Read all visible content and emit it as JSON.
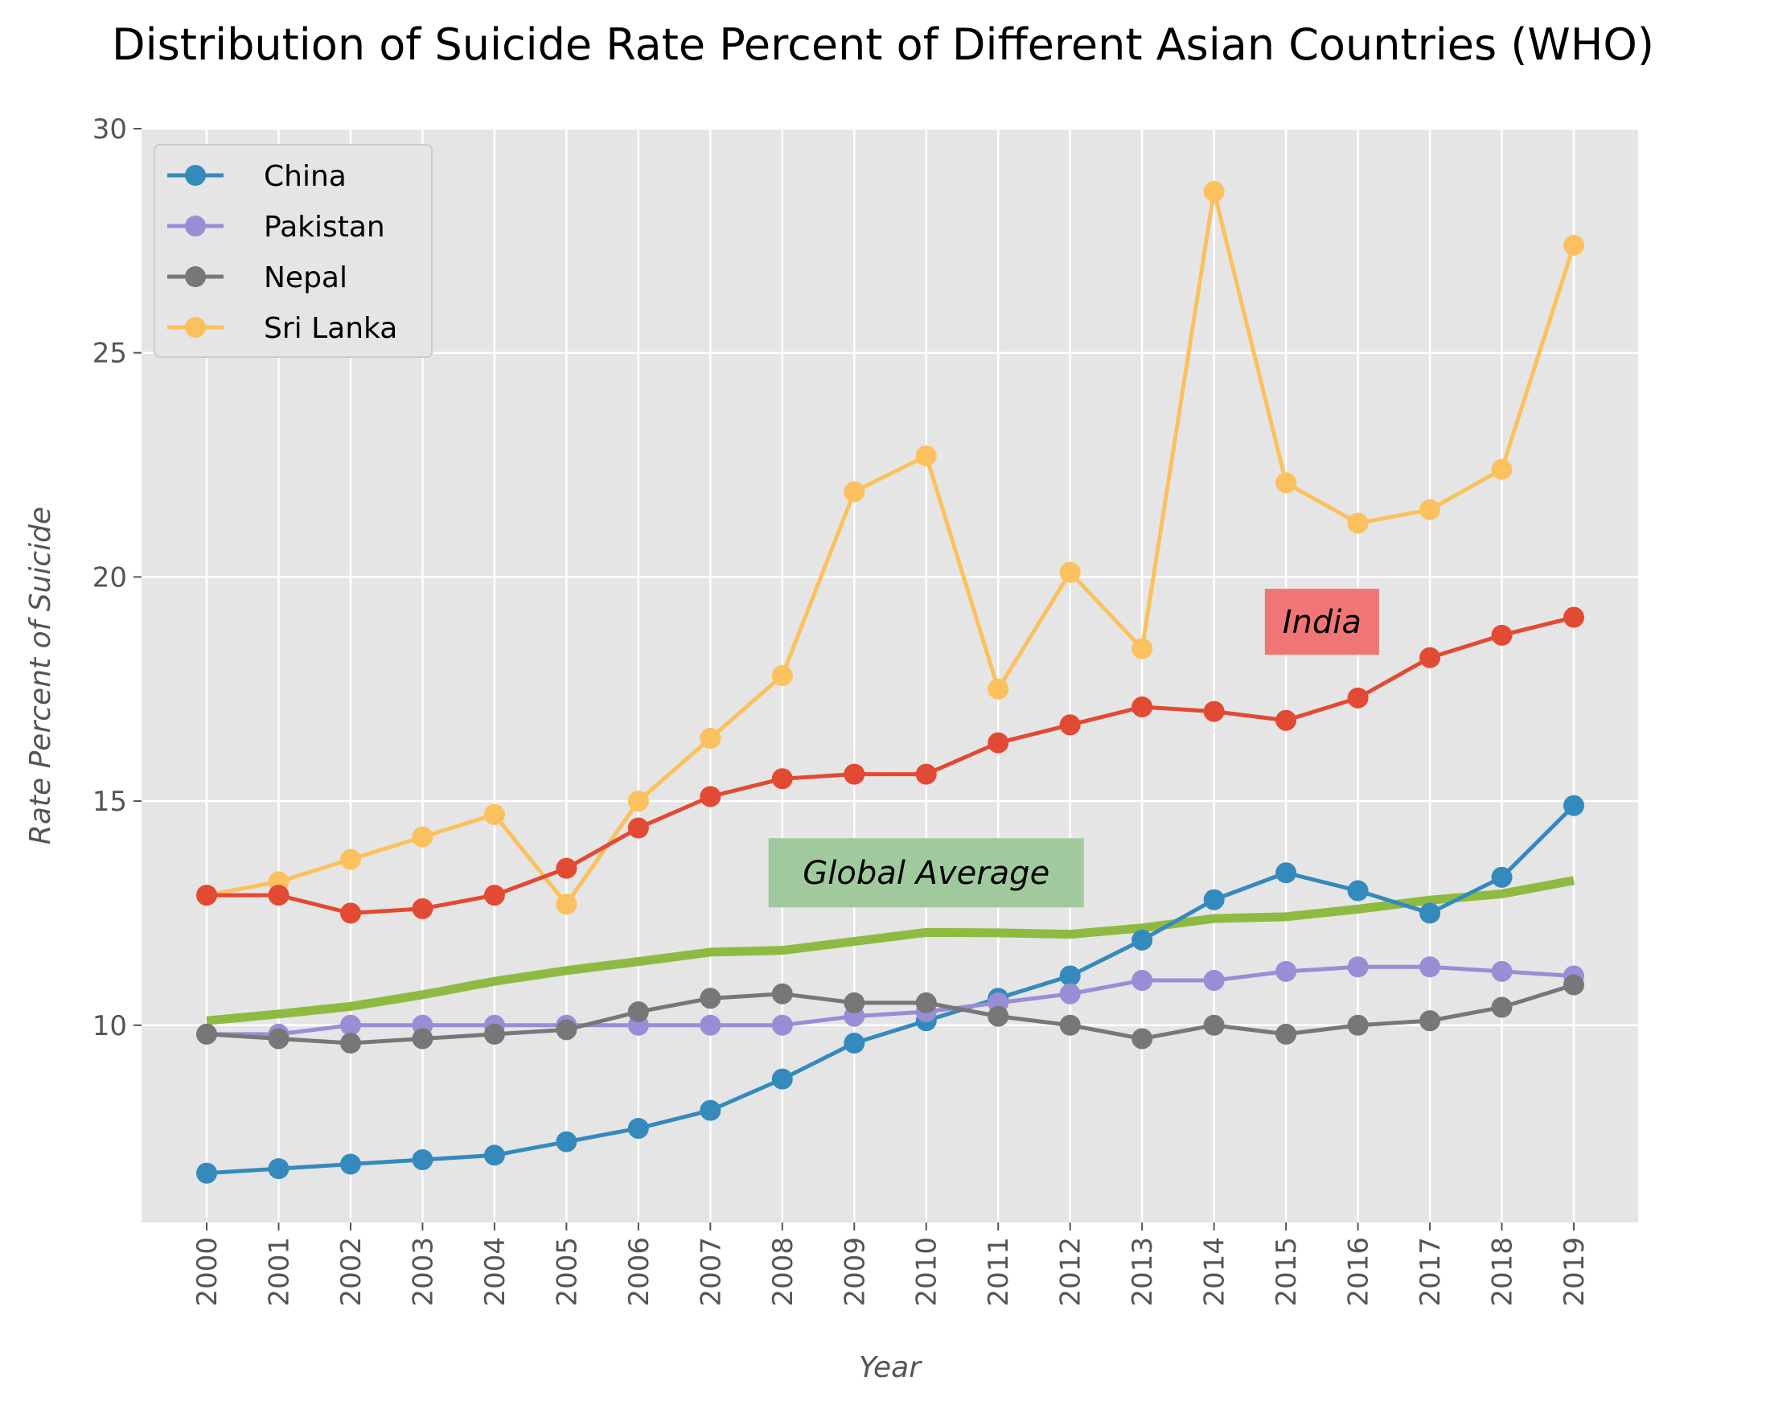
{
  "chart_data": {
    "type": "line",
    "title": "Distribution of Suicide Rate Percent of Different Asian Countries (WHO)",
    "xlabel": "Year",
    "ylabel": "Rate Percent of Suicide",
    "ylim": [
      5.6,
      30
    ],
    "yticks": [
      10,
      15,
      20,
      25,
      30
    ],
    "grid": true,
    "legend_position": "upper-left",
    "categories": [
      "2000",
      "2001",
      "2002",
      "2003",
      "2004",
      "2005",
      "2006",
      "2007",
      "2008",
      "2009",
      "2010",
      "2011",
      "2012",
      "2013",
      "2014",
      "2015",
      "2016",
      "2017",
      "2018",
      "2019"
    ],
    "series": [
      {
        "name": "China",
        "color": "#348ABD",
        "marker": "circle",
        "in_legend": true,
        "values": [
          6.7,
          6.8,
          6.9,
          7.0,
          7.1,
          7.4,
          7.7,
          8.1,
          8.8,
          9.6,
          10.1,
          10.6,
          11.1,
          11.9,
          12.8,
          13.4,
          13.0,
          12.5,
          13.3,
          14.9
        ]
      },
      {
        "name": "Pakistan",
        "color": "#988ED5",
        "marker": "circle",
        "in_legend": true,
        "values": [
          9.8,
          9.8,
          10.0,
          10.0,
          10.0,
          10.0,
          10.0,
          10.0,
          10.0,
          10.2,
          10.3,
          10.5,
          10.7,
          11.0,
          11.0,
          11.2,
          11.3,
          11.3,
          11.2,
          11.1
        ]
      },
      {
        "name": "Nepal",
        "color": "#777777",
        "marker": "circle",
        "in_legend": true,
        "values": [
          9.8,
          9.7,
          9.6,
          9.7,
          9.8,
          9.9,
          10.3,
          10.6,
          10.7,
          10.5,
          10.5,
          10.2,
          10.0,
          9.7,
          10.0,
          9.8,
          10.0,
          10.1,
          10.4,
          10.9
        ]
      },
      {
        "name": "Sri Lanka",
        "color": "#FBC15E",
        "marker": "circle",
        "in_legend": true,
        "values": [
          12.9,
          13.2,
          13.7,
          14.2,
          14.7,
          12.7,
          15.0,
          16.4,
          17.8,
          21.9,
          22.7,
          17.5,
          20.1,
          18.4,
          28.6,
          22.1,
          21.2,
          21.5,
          22.4,
          27.4
        ]
      },
      {
        "name": "India",
        "color": "#E24A33",
        "marker": "circle",
        "in_legend": false,
        "values": [
          12.9,
          12.9,
          12.5,
          12.6,
          12.9,
          13.5,
          14.4,
          15.1,
          15.5,
          15.6,
          15.6,
          16.3,
          16.7,
          17.1,
          17.0,
          16.8,
          17.3,
          18.2,
          18.7,
          19.1
        ]
      },
      {
        "name": "Global Average",
        "color": "#8EBA42",
        "marker": "none",
        "in_legend": false,
        "values": [
          10.1,
          10.25,
          10.42,
          10.68,
          10.98,
          11.22,
          11.42,
          11.63,
          11.67,
          11.87,
          12.07,
          12.06,
          12.03,
          12.17,
          12.38,
          12.42,
          12.59,
          12.79,
          12.93,
          13.23
        ]
      }
    ],
    "annotations": [
      {
        "text": "India",
        "color": "#F07070",
        "anchor_year": "2015.5",
        "anchor_value": 19.0
      },
      {
        "text": "Global Average",
        "color": "#9CC89A",
        "anchor_year": "2010",
        "anchor_value": 13.4
      }
    ]
  }
}
